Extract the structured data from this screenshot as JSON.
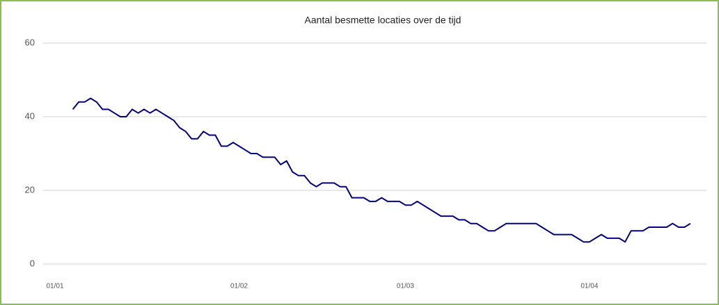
{
  "chart_data": {
    "type": "line",
    "title": "Aantal besmette locaties over de tijd",
    "x": [
      "04/01",
      "05/01",
      "06/01",
      "07/01",
      "08/01",
      "09/01",
      "10/01",
      "11/01",
      "12/01",
      "13/01",
      "14/01",
      "15/01",
      "16/01",
      "17/01",
      "18/01",
      "19/01",
      "20/01",
      "21/01",
      "22/01",
      "23/01",
      "24/01",
      "25/01",
      "26/01",
      "27/01",
      "28/01",
      "29/01",
      "30/01",
      "31/01",
      "01/02",
      "02/02",
      "03/02",
      "04/02",
      "05/02",
      "06/02",
      "07/02",
      "08/02",
      "09/02",
      "10/02",
      "11/02",
      "12/02",
      "13/02",
      "14/02",
      "15/02",
      "16/02",
      "17/02",
      "18/02",
      "19/02",
      "20/02",
      "21/02",
      "22/02",
      "23/02",
      "24/02",
      "25/02",
      "26/02",
      "27/02",
      "28/02",
      "01/03",
      "02/03",
      "03/03",
      "04/03",
      "05/03",
      "06/03",
      "07/03",
      "08/03",
      "09/03",
      "10/03",
      "11/03",
      "12/03",
      "13/03",
      "14/03",
      "15/03",
      "16/03",
      "17/03",
      "18/03",
      "19/03",
      "20/03",
      "21/03",
      "22/03",
      "23/03",
      "24/03",
      "25/03",
      "26/03",
      "27/03",
      "28/03",
      "29/03",
      "30/03",
      "31/03",
      "01/04",
      "02/04",
      "03/04",
      "04/04",
      "05/04",
      "06/04",
      "07/04",
      "08/04",
      "09/04",
      "10/04",
      "11/04",
      "12/04",
      "13/04",
      "14/04",
      "15/04",
      "16/04",
      "17/04",
      "18/04"
    ],
    "series": [
      {
        "name": "Aantal besmette locaties",
        "color": "#000080",
        "values": [
          42,
          44,
          44,
          45,
          44,
          42,
          42,
          41,
          40,
          40,
          42,
          41,
          42,
          41,
          42,
          41,
          40,
          39,
          37,
          36,
          34,
          34,
          36,
          35,
          35,
          32,
          32,
          33,
          32,
          31,
          30,
          30,
          29,
          29,
          29,
          27,
          28,
          25,
          24,
          24,
          22,
          21,
          22,
          22,
          22,
          21,
          21,
          18,
          18,
          18,
          17,
          17,
          18,
          17,
          17,
          17,
          16,
          16,
          17,
          16,
          15,
          14,
          13,
          13,
          13,
          12,
          12,
          11,
          11,
          10,
          9,
          9,
          10,
          11,
          11,
          11,
          11,
          11,
          11,
          10,
          9,
          8,
          8,
          8,
          8,
          7,
          6,
          6,
          7,
          8,
          7,
          7,
          7,
          6,
          9,
          9,
          9,
          10,
          10,
          10,
          10,
          11,
          10,
          10,
          11
        ]
      }
    ],
    "xlim": [
      "01/01",
      "20/04"
    ],
    "xticks": [
      "01/01",
      "01/02",
      "01/03",
      "01/04"
    ],
    "ylim": [
      0,
      60
    ],
    "yticks": [
      0,
      20,
      40,
      60
    ],
    "grid": true
  }
}
